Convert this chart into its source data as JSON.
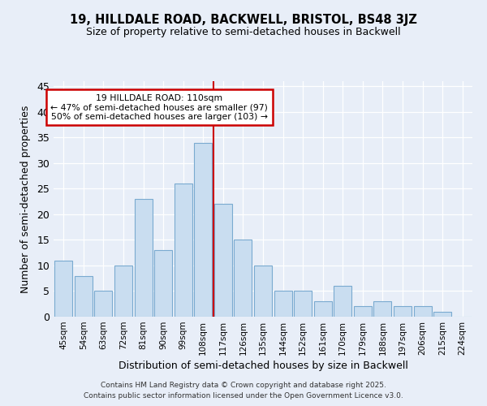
{
  "title": "19, HILLDALE ROAD, BACKWELL, BRISTOL, BS48 3JZ",
  "subtitle": "Size of property relative to semi-detached houses in Backwell",
  "xlabel": "Distribution of semi-detached houses by size in Backwell",
  "ylabel": "Number of semi-detached properties",
  "categories": [
    "45sqm",
    "54sqm",
    "63sqm",
    "72sqm",
    "81sqm",
    "90sqm",
    "99sqm",
    "108sqm",
    "117sqm",
    "126sqm",
    "135sqm",
    "144sqm",
    "152sqm",
    "161sqm",
    "170sqm",
    "179sqm",
    "188sqm",
    "197sqm",
    "206sqm",
    "215sqm",
    "224sqm"
  ],
  "values": [
    11,
    8,
    5,
    10,
    23,
    13,
    26,
    34,
    22,
    15,
    10,
    5,
    5,
    3,
    6,
    2,
    3,
    2,
    2,
    1,
    0
  ],
  "bar_color": "#c9ddf0",
  "bar_edge_color": "#7aaad0",
  "vline_color": "#cc0000",
  "annotation_title": "19 HILLDALE ROAD: 110sqm",
  "annotation_line1": "← 47% of semi-detached houses are smaller (97)",
  "annotation_line2": "50% of semi-detached houses are larger (103) →",
  "annotation_box_color": "#ffffff",
  "annotation_box_edge": "#cc0000",
  "ylim": [
    0,
    46
  ],
  "yticks": [
    0,
    5,
    10,
    15,
    20,
    25,
    30,
    35,
    40,
    45
  ],
  "background_color": "#e8eef8",
  "footer1": "Contains HM Land Registry data © Crown copyright and database right 2025.",
  "footer2": "Contains public sector information licensed under the Open Government Licence v3.0."
}
